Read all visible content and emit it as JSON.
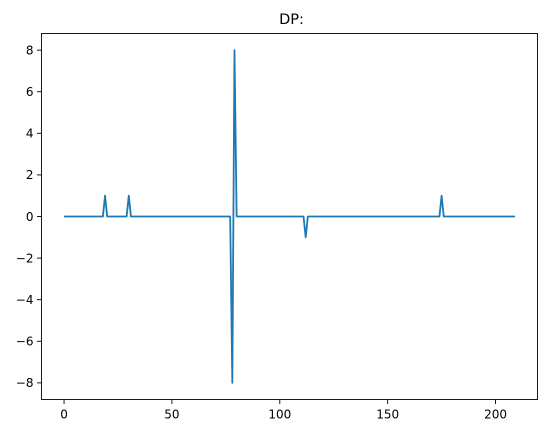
{
  "chart_data": {
    "type": "line",
    "title": "DP:",
    "xlabel": "",
    "ylabel": "",
    "xlim": [
      -10.45,
      219.45
    ],
    "ylim": [
      -8.8,
      8.8
    ],
    "x_ticks": [
      0,
      50,
      100,
      150,
      200
    ],
    "y_ticks": [
      -8,
      -6,
      -4,
      -2,
      0,
      2,
      4,
      6,
      8
    ],
    "x_tick_labels": [
      "0",
      "50",
      "100",
      "150",
      "200"
    ],
    "y_tick_labels": [
      "−8",
      "−6",
      "−4",
      "−2",
      "0",
      "2",
      "4",
      "6",
      "8"
    ],
    "grid": false,
    "legend": "none",
    "series": [
      {
        "color": "#1f77b4",
        "x": [
          0,
          18,
          19,
          20,
          29,
          30,
          31,
          77,
          78,
          79,
          80,
          111,
          112,
          113,
          174,
          175,
          176,
          209
        ],
        "y": [
          0,
          0,
          1,
          0,
          0,
          1,
          0,
          0,
          -8,
          8,
          0,
          0,
          -1,
          0,
          0,
          1,
          0,
          0
        ]
      }
    ]
  }
}
